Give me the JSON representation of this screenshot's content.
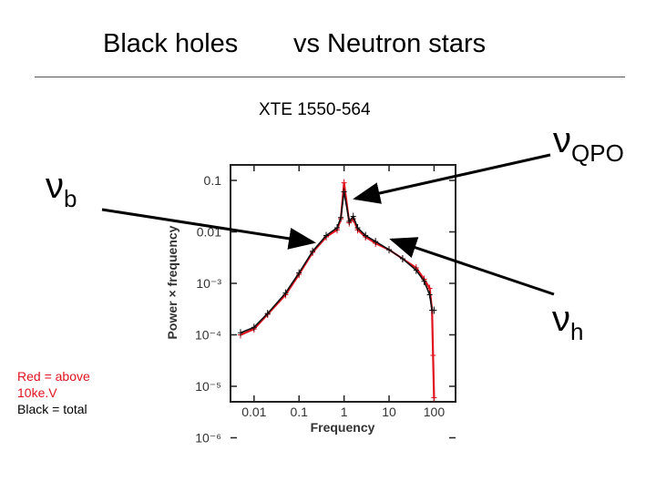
{
  "slide": {
    "title_left": "Black holes",
    "title_right": "vs   Neutron stars",
    "subtitle": "XTE 1550-564",
    "labels": {
      "vb": {
        "main": "ν",
        "sub": "b"
      },
      "vqpo": {
        "main": "ν",
        "sub": "QPO"
      },
      "vh": {
        "main": "ν",
        "sub": "h"
      }
    },
    "legend": {
      "red_line1": "Red  = above",
      "red_line2": "10ke.V",
      "black_line": "Black  = total"
    }
  },
  "colors": {
    "red_series": "#e0131f",
    "black_series": "#111111"
  },
  "chart_data": {
    "type": "line",
    "title": "",
    "xlabel": "Frequency",
    "ylabel": "Power × frequency",
    "xscale": "log",
    "yscale": "log",
    "xlim": [
      0.003,
      300
    ],
    "ylim": [
      5e-06,
      0.2
    ],
    "xticks": [
      "0.01",
      "0.1",
      "1",
      "10",
      "100"
    ],
    "yticks": [
      "0.1",
      "0.01",
      "10⁻³",
      "10⁻⁴",
      "10⁻⁵",
      "10⁻⁶"
    ],
    "series": [
      {
        "name": "Red",
        "x": [
          0.005,
          0.01,
          0.02,
          0.05,
          0.1,
          0.2,
          0.4,
          0.7,
          0.85,
          1.0,
          1.3,
          1.6,
          2.0,
          3.0,
          5.0,
          10,
          20,
          40,
          60,
          80,
          90,
          95,
          100
        ],
        "values": [
          0.0001,
          0.00013,
          0.00025,
          0.0006,
          0.0015,
          0.004,
          0.008,
          0.011,
          0.018,
          0.09,
          0.015,
          0.018,
          0.011,
          0.008,
          0.006,
          0.0045,
          0.003,
          0.002,
          0.0012,
          0.0008,
          0.0003,
          4e-05,
          6e-06
        ]
      },
      {
        "name": "Black",
        "x": [
          0.005,
          0.01,
          0.02,
          0.05,
          0.1,
          0.2,
          0.4,
          0.7,
          0.85,
          1.0,
          1.3,
          1.6,
          2.0,
          3.0,
          5.0,
          10,
          20,
          40,
          60,
          80,
          90,
          100
        ],
        "values": [
          0.00011,
          0.00014,
          0.00026,
          0.00065,
          0.0016,
          0.0042,
          0.0085,
          0.012,
          0.019,
          0.06,
          0.016,
          0.02,
          0.012,
          0.0085,
          0.0065,
          0.0045,
          0.003,
          0.0018,
          0.0011,
          0.0006,
          0.0003,
          0.0003
        ]
      }
    ]
  }
}
